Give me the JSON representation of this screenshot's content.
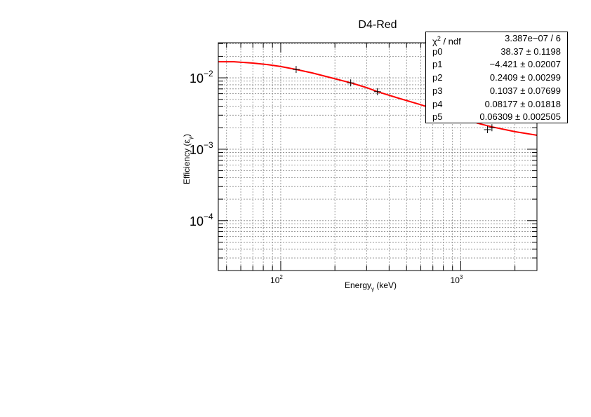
{
  "chart_data": {
    "type": "scatter",
    "title": "D4-Red",
    "xlabel_main": "Energy",
    "xlabel_sub": "γ",
    "xlabel_unit": " (keV)",
    "ylabel_main": "Efficiency (ε",
    "ylabel_sub": "γ",
    "ylabel_close": ")",
    "x_scale": "log",
    "y_scale": "log",
    "xlim": [
      45,
      2650
    ],
    "ylim": [
      2e-05,
      0.031
    ],
    "grid": true,
    "x_tick_labels": [
      {
        "base": "10",
        "exp": "2",
        "value": 100
      },
      {
        "base": "10",
        "exp": "3",
        "value": 1000
      }
    ],
    "y_tick_labels": [
      {
        "base": "10",
        "exp": "−4",
        "value": 0.0001
      },
      {
        "base": "10",
        "exp": "−3",
        "value": 0.001
      },
      {
        "base": "10",
        "exp": "−2",
        "value": 0.01
      }
    ],
    "series": [
      {
        "type": "points",
        "color": "#000000",
        "points": [
          {
            "x": 121.8,
            "y": 0.0131
          },
          {
            "x": 244.7,
            "y": 0.0085
          },
          {
            "x": 344.3,
            "y": 0.0064
          },
          {
            "x": 1408,
            "y": 0.00188
          },
          {
            "x": 1490,
            "y": 0.002
          }
        ]
      },
      {
        "type": "fit-curve",
        "color": "#ff0000",
        "points": [
          {
            "x": 45,
            "y": 0.0168
          },
          {
            "x": 55,
            "y": 0.0168
          },
          {
            "x": 70,
            "y": 0.0161
          },
          {
            "x": 85,
            "y": 0.0153
          },
          {
            "x": 100,
            "y": 0.0144
          },
          {
            "x": 122,
            "y": 0.0131
          },
          {
            "x": 150,
            "y": 0.0117
          },
          {
            "x": 200,
            "y": 0.0097
          },
          {
            "x": 245,
            "y": 0.0085
          },
          {
            "x": 300,
            "y": 0.0073
          },
          {
            "x": 345,
            "y": 0.0064
          },
          {
            "x": 450,
            "y": 0.0052
          },
          {
            "x": 600,
            "y": 0.0042
          },
          {
            "x": 800,
            "y": 0.0033
          },
          {
            "x": 1000,
            "y": 0.0028
          },
          {
            "x": 1250,
            "y": 0.0023
          },
          {
            "x": 1500,
            "y": 0.00205
          },
          {
            "x": 2000,
            "y": 0.00176
          },
          {
            "x": 2650,
            "y": 0.00157
          }
        ]
      }
    ]
  },
  "stats": {
    "header": {
      "name_base": "χ",
      "name_sup": "2",
      "name_rest": " / ndf",
      "value": "3.387e−07 / 6"
    },
    "params": [
      {
        "name": "p0",
        "value": "38.37 ± 0.1198"
      },
      {
        "name": "p1",
        "value": "−4.421 ± 0.02007"
      },
      {
        "name": "p2",
        "value": "0.2409 ± 0.00299"
      },
      {
        "name": "p3",
        "value": "0.1037 ± 0.07699"
      },
      {
        "name": "p4",
        "value": "0.08177 ± 0.01818"
      },
      {
        "name": "p5",
        "value": "0.06309 ± 0.002505"
      }
    ]
  }
}
